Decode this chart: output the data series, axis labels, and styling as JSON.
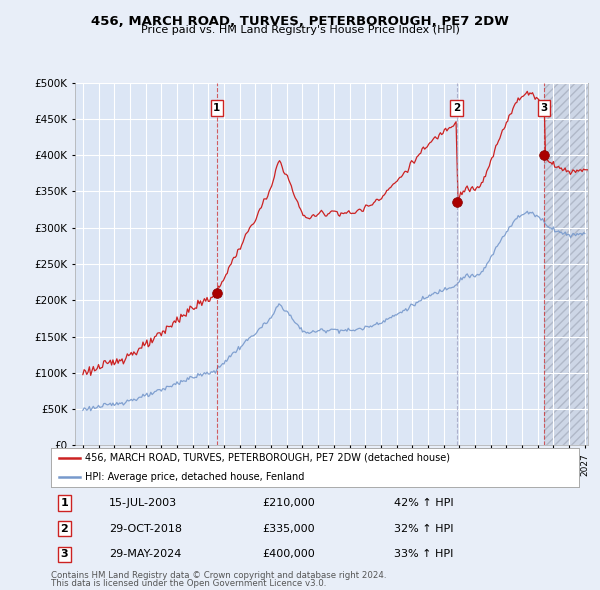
{
  "title": "456, MARCH ROAD, TURVES, PETERBOROUGH, PE7 2DW",
  "subtitle": "Price paid vs. HM Land Registry's House Price Index (HPI)",
  "red_label": "456, MARCH ROAD, TURVES, PETERBOROUGH, PE7 2DW (detached house)",
  "blue_label": "HPI: Average price, detached house, Fenland",
  "transactions": [
    {
      "num": 1,
      "date": "15-JUL-2003",
      "price": 210000,
      "hpi": "42% ↑ HPI",
      "x": 2003.54,
      "vline_color": "#cc2222"
    },
    {
      "num": 2,
      "date": "29-OCT-2018",
      "price": 335000,
      "hpi": "32% ↑ HPI",
      "x": 2018.83,
      "vline_color": "#8899bb"
    },
    {
      "num": 3,
      "date": "29-MAY-2024",
      "price": 400000,
      "hpi": "33% ↑ HPI",
      "x": 2024.41,
      "vline_color": "#cc2222"
    }
  ],
  "footnote1": "Contains HM Land Registry data © Crown copyright and database right 2024.",
  "footnote2": "This data is licensed under the Open Government Licence v3.0.",
  "ylim": [
    0,
    500000
  ],
  "yticks": [
    0,
    50000,
    100000,
    150000,
    200000,
    250000,
    300000,
    350000,
    400000,
    450000,
    500000
  ],
  "xlim_min": 1994.5,
  "xlim_max": 2027.2,
  "background_color": "#e8eef8",
  "plot_bg": "#dce6f5",
  "future_bg": "#d0d8e8",
  "grid_color": "#ffffff",
  "red_color": "#cc2222",
  "blue_color": "#7799cc",
  "future_cutoff": 2024.41
}
